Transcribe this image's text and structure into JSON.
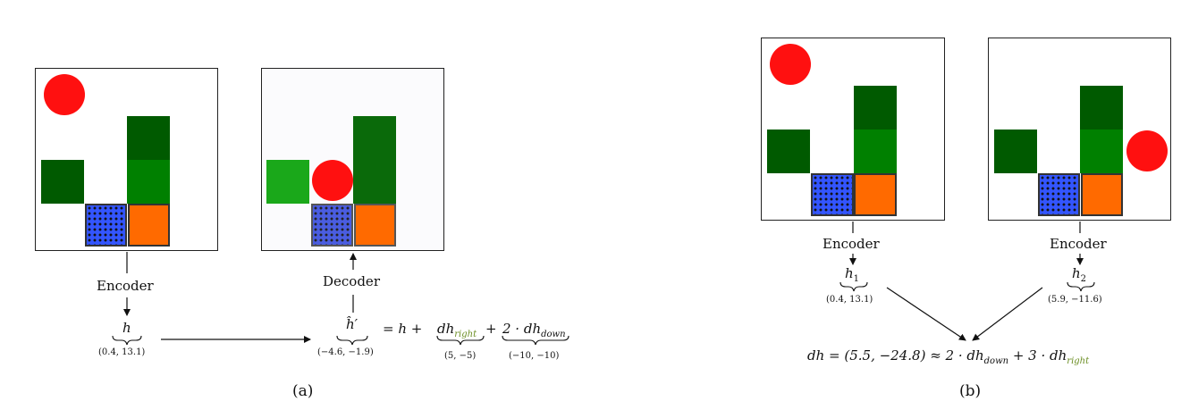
{
  "panel_a": {
    "encoder_label": "Encoder",
    "decoder_label": "Decoder",
    "h_symbol": "h",
    "h_value": "(0.4,  13.1)",
    "hprime_symbol": "ĥ′",
    "hprime_value": "(−4.6, −1.9)",
    "equation_prefix": "= h +",
    "term1_main": "dh",
    "term1_sub": "right",
    "term1_value": "(5,  −5)",
    "plus": "+",
    "term2_main": "2 · dh",
    "term2_sub": "down",
    "term2_value": "(−10,  −10)",
    "caption": "(a)"
  },
  "panel_b": {
    "encoder_label_1": "Encoder",
    "encoder_label_2": "Encoder",
    "h1_symbol": "h",
    "h1_sub": "1",
    "h1_value": "(0.4,  13.1)",
    "h2_symbol": "h",
    "h2_sub": "2",
    "h2_value": "(5.9,  −11.6)",
    "eq_part1": "dh = (5.5,  −24.8) ≈ 2 · dh",
    "eq_sub1": "down",
    "eq_part2": " + 3 · dh",
    "eq_sub2": "right",
    "caption": "(b)"
  },
  "colors": {
    "ball": "#ff1010",
    "dark_green": "#005a00",
    "green": "#008000",
    "bright_green": "#1aa81a",
    "blue": "#3355ff",
    "orange": "#ff6a00",
    "accent_text": "#6b8e23"
  }
}
